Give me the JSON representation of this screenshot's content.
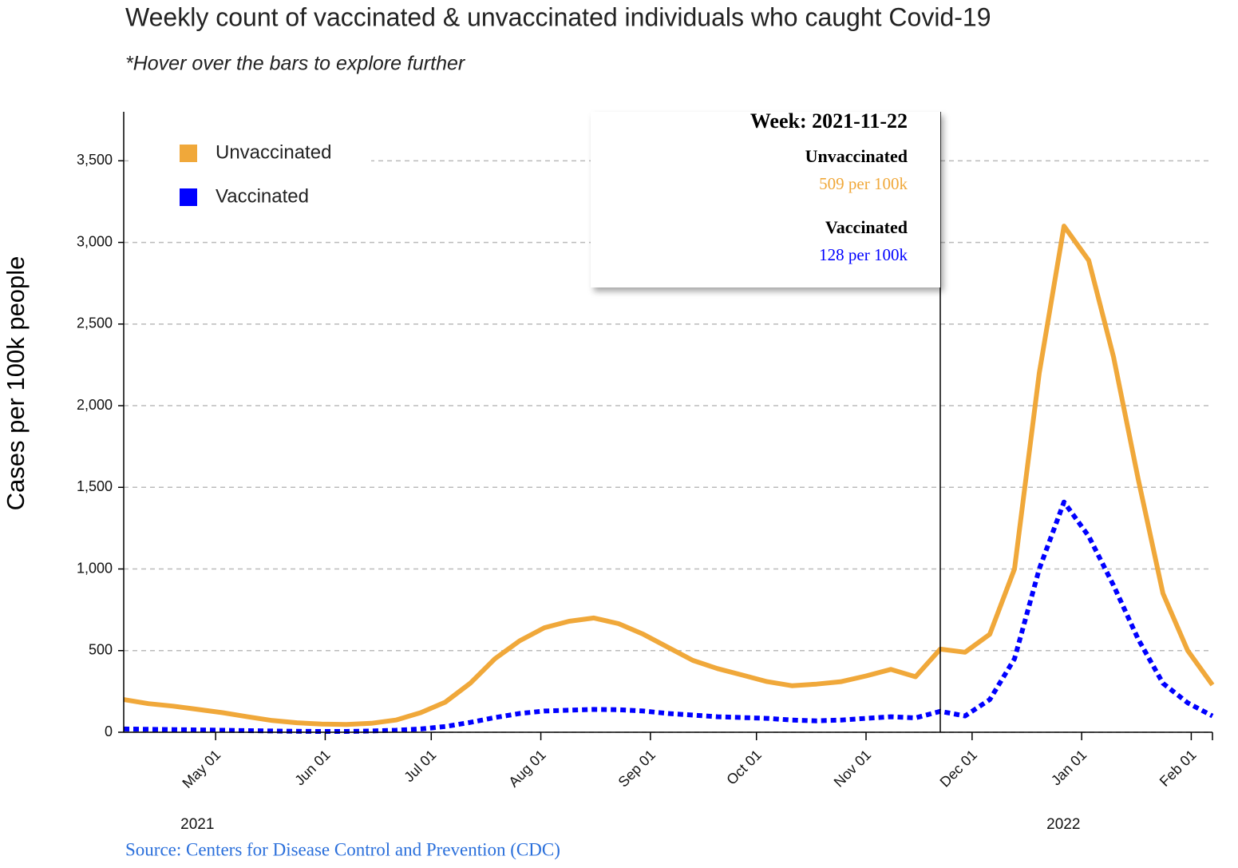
{
  "chart_data": {
    "type": "line",
    "title": "Weekly count of vaccinated & unvaccinated individuals who caught Covid-19",
    "subtitle": "*Hover over the bars to explore further",
    "y_label": "Cases per 100k people",
    "source": "Source: Centers for Disease Control and Prevention (CDC)",
    "x": [
      "2021-04-05",
      "2021-04-12",
      "2021-04-19",
      "2021-04-26",
      "2021-05-03",
      "2021-05-10",
      "2021-05-17",
      "2021-05-24",
      "2021-05-31",
      "2021-06-07",
      "2021-06-14",
      "2021-06-21",
      "2021-06-28",
      "2021-07-05",
      "2021-07-12",
      "2021-07-19",
      "2021-07-26",
      "2021-08-02",
      "2021-08-09",
      "2021-08-16",
      "2021-08-23",
      "2021-08-30",
      "2021-09-06",
      "2021-09-13",
      "2021-09-20",
      "2021-09-27",
      "2021-10-04",
      "2021-10-11",
      "2021-10-18",
      "2021-10-25",
      "2021-11-01",
      "2021-11-08",
      "2021-11-15",
      "2021-11-22",
      "2021-11-29",
      "2021-12-06",
      "2021-12-13",
      "2021-12-20",
      "2021-12-27",
      "2022-01-03",
      "2022-01-10",
      "2022-01-17",
      "2022-01-24",
      "2022-01-31",
      "2022-02-07"
    ],
    "series": [
      {
        "name": "Unvaccinated",
        "color": "#f0a83a",
        "dashed": false,
        "values": [
          200,
          175,
          160,
          140,
          120,
          95,
          72,
          58,
          50,
          48,
          55,
          75,
          120,
          185,
          300,
          450,
          560,
          640,
          680,
          700,
          665,
          600,
          520,
          440,
          390,
          350,
          310,
          285,
          295,
          310,
          345,
          385,
          340,
          509,
          490,
          600,
          1000,
          2200,
          3100,
          2890,
          2300,
          1550,
          850,
          500,
          290
        ]
      },
      {
        "name": "Vaccinated",
        "color": "#0000ff",
        "dashed": true,
        "values": [
          20,
          18,
          16,
          14,
          12,
          10,
          8,
          6,
          5,
          5,
          8,
          12,
          20,
          35,
          60,
          90,
          115,
          130,
          135,
          140,
          138,
          130,
          115,
          105,
          95,
          90,
          85,
          75,
          70,
          75,
          85,
          95,
          88,
          128,
          100,
          200,
          450,
          1000,
          1410,
          1200,
          900,
          570,
          300,
          180,
          100
        ]
      }
    ],
    "xlim": [
      "2021-04-05",
      "2022-02-07"
    ],
    "xticks": [
      {
        "value": "2021-05-01",
        "label": "May 01"
      },
      {
        "value": "2021-06-01",
        "label": "Jun 01"
      },
      {
        "value": "2021-07-01",
        "label": "Jul 01"
      },
      {
        "value": "2021-08-01",
        "label": "Aug 01"
      },
      {
        "value": "2021-09-01",
        "label": "Sep 01"
      },
      {
        "value": "2021-10-01",
        "label": "Oct 01"
      },
      {
        "value": "2021-11-01",
        "label": "Nov 01"
      },
      {
        "value": "2021-12-01",
        "label": "Dec 01"
      },
      {
        "value": "2022-01-01",
        "label": "Jan 01"
      },
      {
        "value": "2022-02-01",
        "label": "Feb 01"
      }
    ],
    "year_labels": [
      {
        "value": "2021-05-01",
        "label": "2021"
      },
      {
        "value": "2022-01-01",
        "label": "2022"
      }
    ],
    "ylim": [
      0,
      3800
    ],
    "yticks": [
      0,
      500,
      {
        "value": 1000,
        "label": "1,000"
      },
      {
        "value": 1500,
        "label": "1,500"
      },
      {
        "value": 2000,
        "label": "2,000"
      },
      {
        "value": 2500,
        "label": "2,500"
      },
      {
        "value": 3000,
        "label": "3,000"
      },
      {
        "value": 3500,
        "label": "3,500"
      }
    ],
    "grid": true,
    "legend": "upper left",
    "tooltip": {
      "title": "Week: 2021-11-22",
      "values": [
        "509 per 100k",
        "128 per 100k"
      ]
    }
  }
}
